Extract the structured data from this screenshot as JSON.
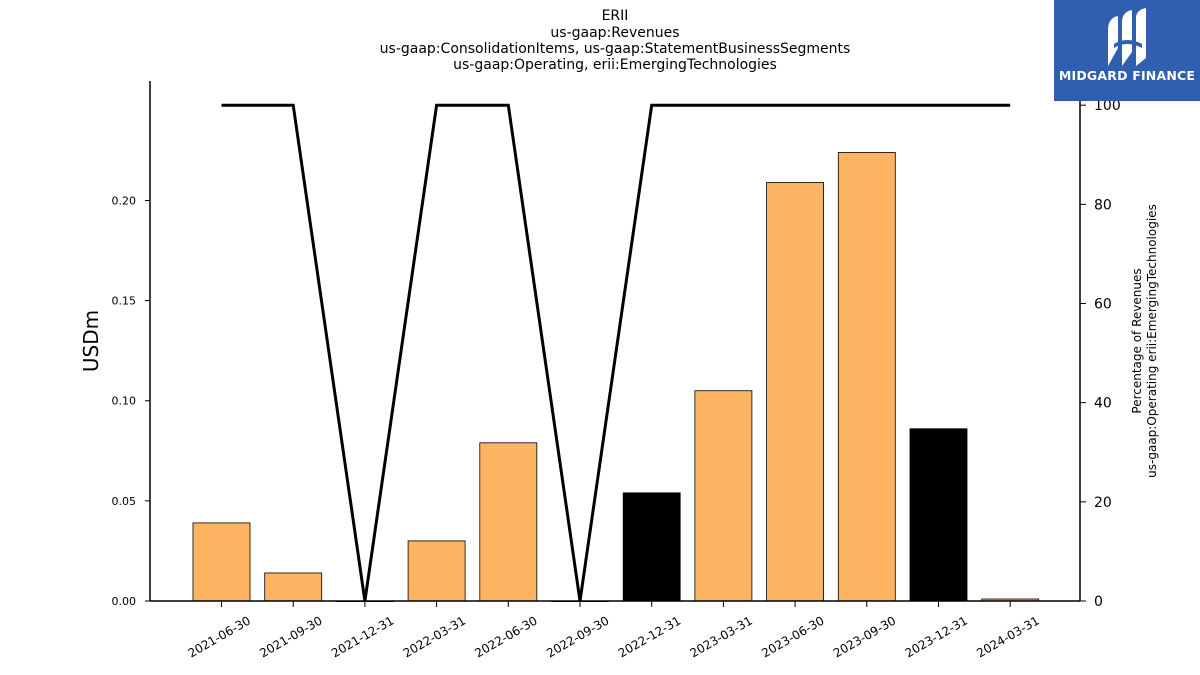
{
  "chart_data": {
    "type": "bar",
    "title": [
      "ERII",
      "us-gaap:Revenues",
      "us-gaap:ConsolidationItems, us-gaap:StatementBusinessSegments",
      "us-gaap:Operating, erii:EmergingTechnologies"
    ],
    "ylabel": "USDm",
    "y2label": [
      "Percentage of Revenues",
      "us-gaap:Operating erii:EmergingTechnologies"
    ],
    "categories": [
      "2021-06-30",
      "2021-09-30",
      "2021-12-31",
      "2022-03-31",
      "2022-06-30",
      "2022-09-30",
      "2022-12-31",
      "2023-03-31",
      "2023-06-30",
      "2023-09-30",
      "2023-12-31",
      "2024-03-31"
    ],
    "values": [
      0.039,
      0.014,
      0.0,
      0.03,
      0.079,
      0.0,
      0.054,
      0.105,
      0.209,
      0.224,
      0.086,
      0.001
    ],
    "bar_colors": [
      "#fdb462",
      "#fdb462",
      "#fdb462",
      "#fdb462",
      "#fdb462",
      "#fdb462",
      "#000000",
      "#fdb462",
      "#fdb462",
      "#fdb462",
      "#000000",
      "#fdb462"
    ],
    "line_values": [
      100,
      100,
      0,
      100,
      100,
      0,
      100,
      100,
      100,
      100,
      100,
      100
    ],
    "line_color": "#000000",
    "ylim": [
      0,
      0.235
    ],
    "y2lim": [
      0,
      105
    ],
    "yticks": [
      "0.00",
      "0.05",
      "0.10",
      "0.15",
      "0.20"
    ],
    "y2ticks": [
      "0",
      "20",
      "40",
      "60",
      "80",
      "100"
    ],
    "grid": false,
    "legend": "none"
  },
  "logo": {
    "text": "MIDGARD FINANCE"
  }
}
